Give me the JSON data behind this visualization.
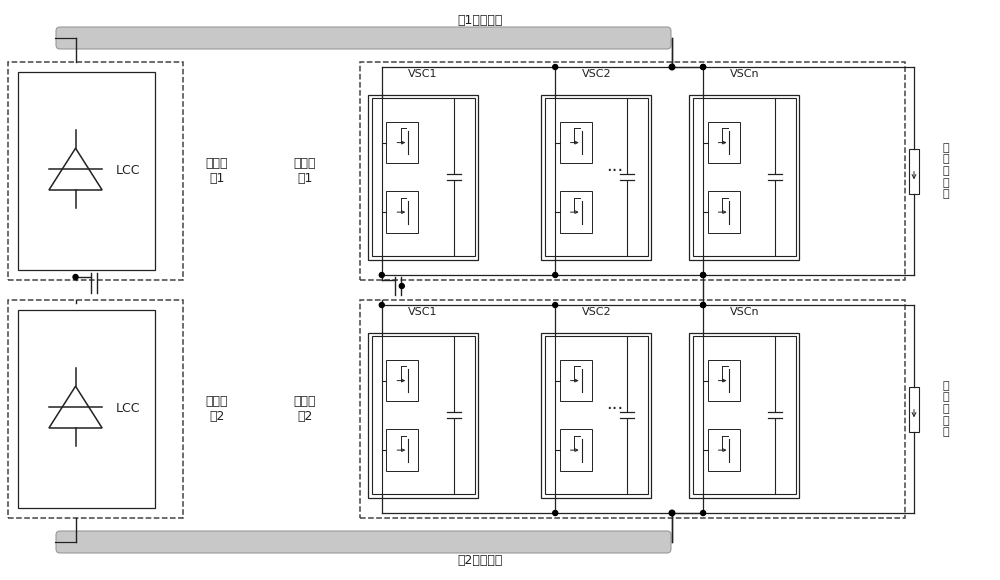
{
  "top_label": "极1直流线路",
  "bottom_label": "极2直流线路",
  "lcc_label": "LCC",
  "rectifier1_label": "整流站\n极1",
  "rectifier2_label": "整流站\n极2",
  "inverter1_label": "逆变站\n极1",
  "inverter2_label": "逆变站\n极2",
  "vsc_labels": [
    "VSC1",
    "VSC2",
    "VSCn"
  ],
  "arrester_label": "并\n联\n避\n雷\n器",
  "bg_color": "#ffffff",
  "line_color": "#222222",
  "dash_color": "#444444"
}
